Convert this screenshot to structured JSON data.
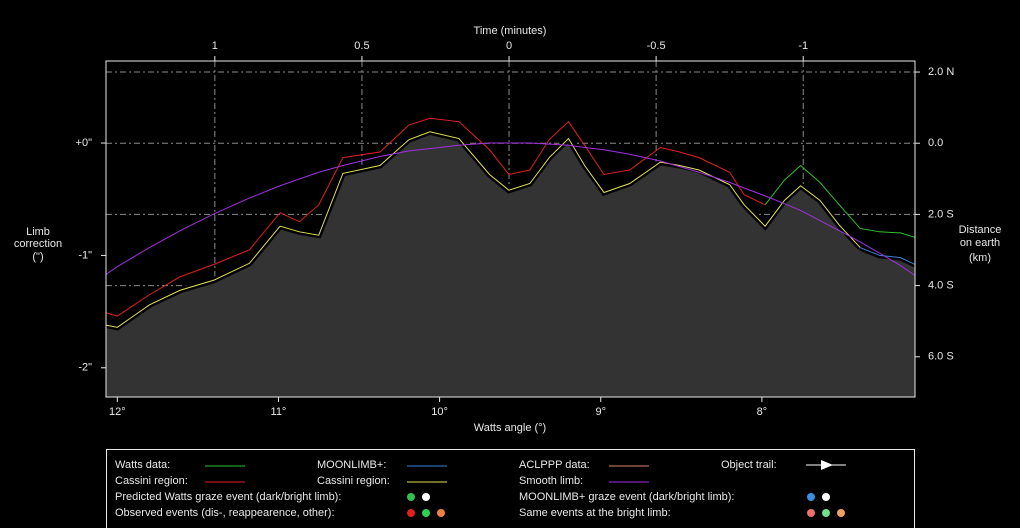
{
  "chart_data": {
    "type": "line",
    "xlabel": "Watts angle (°)",
    "x2label": "Time (minutes)",
    "ylabel": [
      "Limb",
      "correction",
      "(\")"
    ],
    "y2label": [
      "Distance",
      "on earth",
      "(km)"
    ],
    "x": [
      12.07,
      12.0,
      11.8,
      11.61,
      11.4,
      11.18,
      10.99,
      10.87,
      10.75,
      10.6,
      10.37,
      10.19,
      10.06,
      9.88,
      9.69,
      9.57,
      9.44,
      9.32,
      9.2,
      9.1,
      8.98,
      8.82,
      8.63,
      8.51,
      8.39,
      8.2,
      8.11,
      7.98,
      7.86,
      7.76,
      7.64,
      7.52,
      7.39,
      7.27,
      7.14,
      7.05
    ],
    "xlim": [
      12.07,
      7.05
    ],
    "xticks": [
      {
        "value": 12,
        "label": "12°"
      },
      {
        "value": 11,
        "label": "11°"
      },
      {
        "value": 10,
        "label": "10°"
      },
      {
        "value": 9,
        "label": "9°"
      },
      {
        "value": 8,
        "label": "8°"
      }
    ],
    "x2lim": [
      1.37,
      -1.38
    ],
    "x2ticks": [
      1,
      0.5,
      0,
      -0.5,
      -1
    ],
    "ylim": [
      -2.26,
      0.73
    ],
    "yticks": [
      {
        "value": 0,
        "label": "+0\""
      },
      {
        "value": -1,
        "label": "-1\""
      },
      {
        "value": -2,
        "label": "-2\""
      }
    ],
    "y2lim": [
      -7.13,
      2.31
    ],
    "y2ticks": [
      {
        "value": 2,
        "label": "2.0 N"
      },
      {
        "value": 0,
        "label": "0.0"
      },
      {
        "value": -2,
        "label": "2.0 S"
      },
      {
        "value": -4,
        "label": "4.0 S"
      },
      {
        "value": -6,
        "label": "6.0 S"
      }
    ],
    "grid": true,
    "series": [
      {
        "name": "Watts data:",
        "color": "#30c030",
        "values": [
          null,
          null,
          null,
          null,
          null,
          null,
          null,
          null,
          null,
          null,
          null,
          null,
          null,
          null,
          null,
          null,
          null,
          null,
          null,
          null,
          null,
          null,
          null,
          null,
          null,
          null,
          null,
          -0.55,
          -0.33,
          -0.2,
          -0.35,
          -0.55,
          -0.76,
          -0.79,
          -0.8,
          -0.84
        ]
      },
      {
        "name": "Cassini region:",
        "color": "#e02020",
        "values": [
          -1.51,
          -1.54,
          -1.35,
          -1.19,
          -1.08,
          -0.95,
          -0.62,
          -0.7,
          -0.55,
          -0.13,
          -0.08,
          0.16,
          0.22,
          0.19,
          -0.06,
          -0.28,
          -0.24,
          0.03,
          0.19,
          -0.02,
          -0.28,
          -0.24,
          -0.04,
          -0.08,
          -0.13,
          -0.26,
          -0.46,
          -0.55,
          null,
          null,
          null,
          null,
          null,
          null,
          null,
          null
        ]
      },
      {
        "name": "MOONLIMB+:",
        "color": "#3a80d8",
        "values": [
          null,
          null,
          null,
          null,
          null,
          null,
          null,
          null,
          null,
          null,
          null,
          null,
          null,
          null,
          null,
          null,
          null,
          null,
          null,
          null,
          null,
          null,
          null,
          null,
          null,
          null,
          null,
          null,
          null,
          null,
          null,
          null,
          -0.93,
          -1.0,
          -1.02,
          -1.08
        ]
      },
      {
        "name": "Cassini region:",
        "color": "#e0e050",
        "values": [
          -1.62,
          -1.64,
          -1.44,
          -1.31,
          -1.22,
          -1.07,
          -0.74,
          -0.79,
          -0.82,
          -0.27,
          -0.2,
          0.03,
          0.1,
          0.04,
          -0.28,
          -0.42,
          -0.36,
          -0.13,
          0.04,
          -0.2,
          -0.44,
          -0.36,
          -0.17,
          -0.2,
          -0.24,
          -0.37,
          -0.55,
          -0.74,
          -0.51,
          -0.38,
          -0.51,
          -0.73,
          -0.93,
          null,
          null,
          null
        ]
      },
      {
        "name": "Smooth limb:",
        "color": "#a030e0",
        "values": [
          -1.17,
          -1.1,
          -0.93,
          -0.78,
          -0.63,
          -0.49,
          -0.38,
          -0.32,
          -0.26,
          -0.2,
          -0.12,
          -0.07,
          -0.05,
          -0.02,
          0.0,
          0.0,
          0.0,
          -0.01,
          -0.02,
          -0.04,
          -0.06,
          -0.1,
          -0.16,
          -0.21,
          -0.26,
          -0.35,
          -0.4,
          -0.47,
          -0.54,
          -0.6,
          -0.69,
          -0.78,
          -0.88,
          -0.98,
          -1.09,
          -1.18
        ]
      }
    ],
    "legend_extra": [
      {
        "name": "ACLPPP data:",
        "color": "#e08868"
      },
      {
        "name": "Object trail:",
        "color": "#ffffff"
      }
    ],
    "events": [
      {
        "label": "Predicted Watts graze event (dark/bright limb):",
        "colors": [
          "#30c050",
          "#ffffff"
        ]
      },
      {
        "label": "MOONLIMB+ graze event (dark/bright limb):",
        "colors": [
          "#3a90e0",
          "#ffffff"
        ]
      },
      {
        "label": "Observed events (dis-, reappearence, other):",
        "colors": [
          "#e02020",
          "#30d050",
          "#f08040"
        ]
      },
      {
        "label": "Same events at the bright limb:",
        "colors": [
          "#f07070",
          "#70e090",
          "#f0a060"
        ]
      }
    ]
  }
}
